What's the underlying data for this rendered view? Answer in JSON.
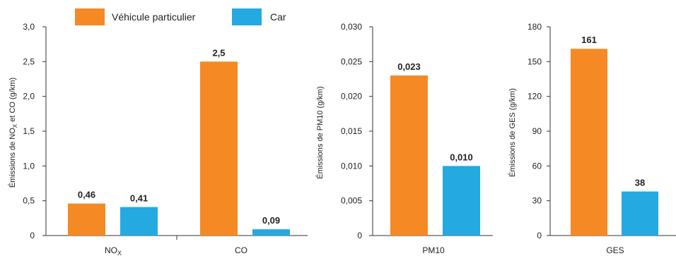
{
  "colors": {
    "vp": "#f58a24",
    "car": "#24a9e1"
  },
  "legend": [
    {
      "label": "Véhicule particulier",
      "color": "#f58a24"
    },
    {
      "label": "Car",
      "color": "#24a9e1"
    }
  ],
  "chart_data": [
    {
      "type": "bar",
      "ylabel": "Émissions de NOX et CO (g/km)",
      "ylim": [
        0,
        3.0
      ],
      "yticks": [
        "0",
        "0,5",
        "1,0",
        "1,5",
        "2,0",
        "2,5",
        "3,0"
      ],
      "categories": [
        "NOX",
        "CO"
      ],
      "series": [
        {
          "name": "Véhicule particulier",
          "values": [
            0.46,
            2.5
          ],
          "labels": [
            "0,46",
            "2,5"
          ]
        },
        {
          "name": "Car",
          "values": [
            0.41,
            0.09
          ],
          "labels": [
            "0,41",
            "0,09"
          ]
        }
      ]
    },
    {
      "type": "bar",
      "ylabel": "Émissions de PM10 (g/km)",
      "ylim": [
        0,
        0.03
      ],
      "yticks": [
        "0",
        "0,005",
        "0,010",
        "0,015",
        "0,020",
        "0,025",
        "0,030"
      ],
      "categories": [
        "PM10"
      ],
      "series": [
        {
          "name": "Véhicule particulier",
          "values": [
            0.023
          ],
          "labels": [
            "0,023"
          ]
        },
        {
          "name": "Car",
          "values": [
            0.01
          ],
          "labels": [
            "0,010"
          ]
        }
      ]
    },
    {
      "type": "bar",
      "ylabel": "Émissions de GES (g/km)",
      "ylim": [
        0,
        180
      ],
      "yticks": [
        "0",
        "30",
        "60",
        "90",
        "120",
        "150",
        "180"
      ],
      "categories": [
        "GES"
      ],
      "series": [
        {
          "name": "Véhicule particulier",
          "values": [
            161
          ],
          "labels": [
            "161"
          ]
        },
        {
          "name": "Car",
          "values": [
            38
          ],
          "labels": [
            "38"
          ]
        }
      ]
    }
  ]
}
